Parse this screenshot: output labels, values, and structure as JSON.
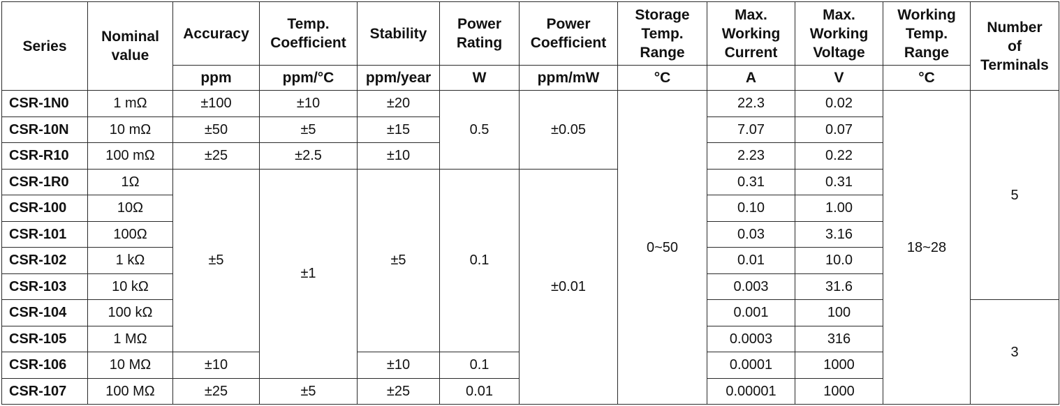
{
  "headers": {
    "series": [
      "Series"
    ],
    "nominal": [
      "Nominal",
      "value"
    ],
    "accuracy": [
      "Accuracy"
    ],
    "temp_coef": [
      "Temp.",
      "Coefficient"
    ],
    "stability": [
      "Stability"
    ],
    "power_rating": [
      "Power",
      "Rating"
    ],
    "power_coef": [
      "Power",
      "Coefficient"
    ],
    "storage_temp": [
      "Storage",
      "Temp.",
      "Range"
    ],
    "max_current": [
      "Max.",
      "Working",
      "Current"
    ],
    "max_voltage": [
      "Max.",
      "Working",
      "Voltage"
    ],
    "working_temp": [
      "Working",
      "Temp.",
      "Range"
    ],
    "terminals": [
      "Number",
      "of",
      "Terminals"
    ]
  },
  "units": {
    "accuracy": "ppm",
    "temp_coef": "ppm/°C",
    "stability": "ppm/year",
    "power_rating": "W",
    "power_coef": "ppm/mW",
    "storage_temp": "°C",
    "max_current": "A",
    "max_voltage": "V",
    "working_temp": "°C"
  },
  "rows": [
    {
      "series": "CSR-1N0",
      "nominal": "1 mΩ",
      "current": "22.3",
      "voltage": "0.02"
    },
    {
      "series": "CSR-10N",
      "nominal": "10 mΩ",
      "current": "7.07",
      "voltage": "0.07"
    },
    {
      "series": "CSR-R10",
      "nominal": "100 mΩ",
      "current": "2.23",
      "voltage": "0.22"
    },
    {
      "series": "CSR-1R0",
      "nominal": "1Ω",
      "current": "0.31",
      "voltage": "0.31"
    },
    {
      "series": "CSR-100",
      "nominal": "10Ω",
      "current": "0.10",
      "voltage": "1.00"
    },
    {
      "series": "CSR-101",
      "nominal": "100Ω",
      "current": "0.03",
      "voltage": "3.16"
    },
    {
      "series": "CSR-102",
      "nominal": "1 kΩ",
      "current": "0.01",
      "voltage": "10.0"
    },
    {
      "series": "CSR-103",
      "nominal": "10 kΩ",
      "current": "0.003",
      "voltage": "31.6"
    },
    {
      "series": "CSR-104",
      "nominal": "100 kΩ",
      "current": "0.001",
      "voltage": "100"
    },
    {
      "series": "CSR-105",
      "nominal": "1 MΩ",
      "current": "0.0003",
      "voltage": "316"
    },
    {
      "series": "CSR-106",
      "nominal": "10 MΩ",
      "current": "0.0001",
      "voltage": "1000"
    },
    {
      "series": "CSR-107",
      "nominal": "100 MΩ",
      "current": "0.00001",
      "voltage": "1000"
    }
  ],
  "accuracy": [
    "±100",
    "±50",
    "±25",
    "±5",
    "±10",
    "±25"
  ],
  "temp_coef": [
    "±10",
    "±5",
    "±2.5",
    "±1",
    "±5"
  ],
  "stability": [
    "±20",
    "±15",
    "±10",
    "±5",
    "±10",
    "±25"
  ],
  "power_rating": [
    "0.5",
    "0.1",
    "0.1",
    "0.01"
  ],
  "power_coef": [
    "±0.05",
    "±0.01"
  ],
  "storage_temp": "0~50",
  "working_temp": "18~28",
  "terminals": [
    "5",
    "3"
  ]
}
